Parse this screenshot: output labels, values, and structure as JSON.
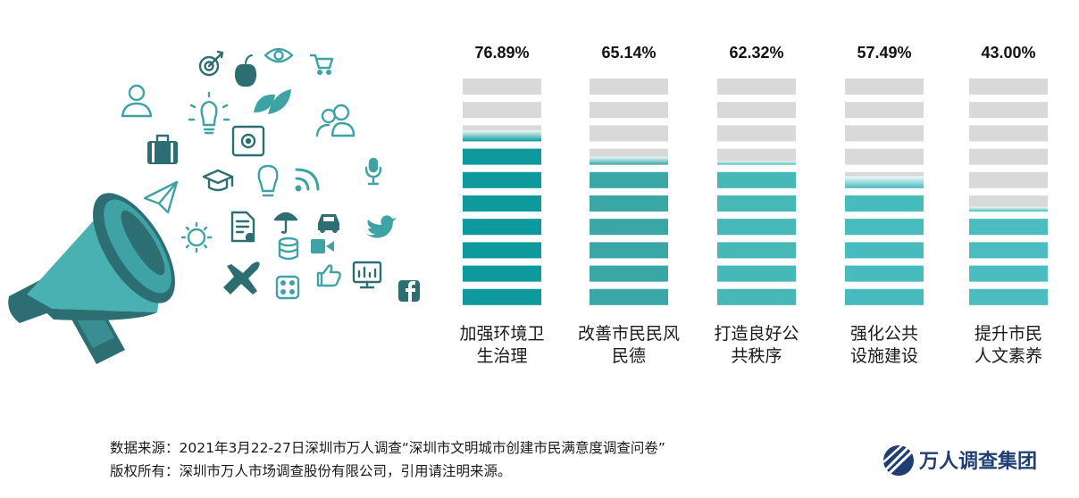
{
  "chart_data": {
    "type": "bar",
    "categories": [
      [
        "加强环境卫",
        "生治理"
      ],
      [
        "改善市民民风",
        "民德"
      ],
      [
        "打造良好公",
        "共秩序"
      ],
      [
        "强化公共",
        "设施建设"
      ],
      [
        "提升市民",
        "人文素养"
      ]
    ],
    "values": [
      76.89,
      65.14,
      62.32,
      57.49,
      43.0
    ],
    "value_labels": [
      "76.89%",
      "65.14%",
      "62.32%",
      "57.49%",
      "43.00%"
    ],
    "ylim": [
      0,
      100
    ],
    "unit": "%",
    "grid": false,
    "legend": "none"
  },
  "colors": {
    "empty": "#d9d9d9",
    "series": [
      "#0e9a9c",
      "#3aa6a6",
      "#47b8b8",
      "#46bcbf",
      "#4bbcc0"
    ],
    "megaphone_light": "#49b1b1",
    "megaphone_dark": "#2d6e73",
    "icon": "#2d6e73",
    "icon_light": "#3fb0b0"
  },
  "footer": {
    "source": "数据来源：2021年3月22-27日深圳市万人调查“深圳市文明城市创建市民满意度调查问卷”",
    "copyright": "版权所有：深圳市万人市场调查股份有限公司，引用请注明来源。"
  },
  "logo": {
    "text": "万人调查集团"
  },
  "icons": [
    "user-icon",
    "target-icon",
    "apple-icon",
    "eye-icon",
    "cart-icon",
    "leaf-icon",
    "lightbulb-icon",
    "group-icon",
    "briefcase-icon",
    "safe-icon",
    "microphone-icon",
    "graduation-cap-icon",
    "bulb-icon",
    "wifi-icon",
    "paper-plane-icon",
    "certificate-icon",
    "umbrella-icon",
    "car-icon",
    "twitter-icon",
    "sun-icon",
    "database-icon",
    "video-icon",
    "airplane-icon",
    "dice-icon",
    "thumbs-up-icon",
    "monitor-icon",
    "facebook-icon",
    "megaphone-icon"
  ]
}
